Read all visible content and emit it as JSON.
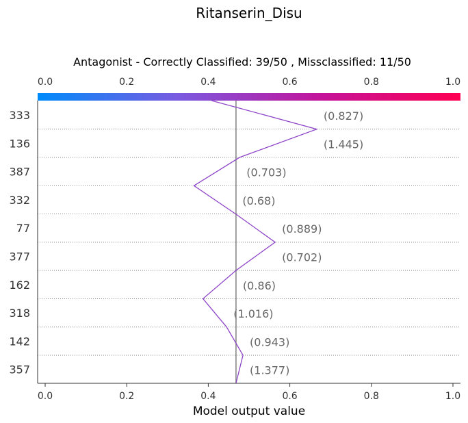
{
  "chart_data": {
    "type": "line",
    "title": "Ritanserin_Disu",
    "subtitle": "Antagonist - Correctly Classified: 39/50 , Missclassified: 11/50",
    "xlabel": "Model output value",
    "xlim": [
      0.0,
      1.0
    ],
    "xticks": [
      "0.0",
      "0.2",
      "0.4",
      "0.6",
      "0.8",
      "1.0"
    ],
    "base_value": 0.468,
    "colorbar": {
      "range": [
        0.0,
        1.0
      ],
      "colors": [
        "#008bfb",
        "#7a5ae0",
        "#c3139b",
        "#ff0052"
      ]
    },
    "line_color": "#8e44c8",
    "features": [
      "333",
      "136",
      "387",
      "332",
      "77",
      "377",
      "162",
      "318",
      "142",
      "357"
    ],
    "feature_values": [
      "(0.827)",
      "(1.445)",
      "(0.703)",
      "(0.68)",
      "(0.889)",
      "(0.702)",
      "(0.86)",
      "(1.016)",
      "(0.943)",
      "(1.377)"
    ],
    "path_points": [
      0.408,
      0.666,
      0.477,
      0.365,
      0.467,
      0.564,
      0.468,
      0.387,
      0.445,
      0.485,
      0.468
    ],
    "grid": true
  }
}
